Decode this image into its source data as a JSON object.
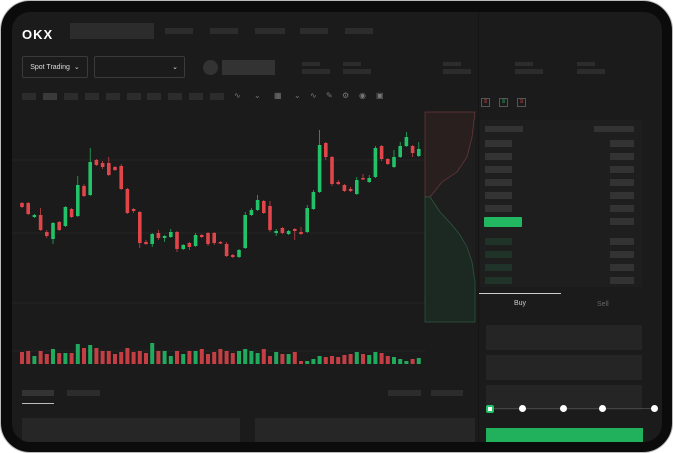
{
  "brand": {
    "logo_text": "OKX"
  },
  "market_selector": {
    "label": "Spot Trading",
    "chevron": "chevron-down-icon"
  },
  "pair_selector": {
    "value": "",
    "chevron": "chevron-down-icon"
  },
  "order_form": {
    "tabs": [
      {
        "label": "Buy",
        "active": true
      },
      {
        "label": "Sell",
        "active": false
      }
    ],
    "leverage_slider_position": 0,
    "submit_color": "#21b15d"
  },
  "orderbook": {
    "view_icons": [
      "orderbook-both-icon",
      "orderbook-bids-icon",
      "orderbook-asks-icon"
    ]
  },
  "colors": {
    "up": "#22c268",
    "down": "#e0454a",
    "background": "#1b1b1b"
  },
  "chart_data": {
    "type": "candlestick",
    "candles": [
      [
        167,
        163,
        168,
        162
      ],
      [
        167,
        156,
        168,
        155
      ],
      [
        153,
        155,
        156,
        152
      ],
      [
        155,
        140,
        162,
        139
      ],
      [
        138,
        134,
        140,
        132
      ],
      [
        131,
        147,
        148,
        126
      ],
      [
        148,
        140,
        149,
        139
      ],
      [
        144,
        163,
        164,
        143
      ],
      [
        161,
        153,
        162,
        152
      ],
      [
        154,
        185,
        194,
        153
      ],
      [
        184,
        174,
        186,
        173
      ],
      [
        175,
        208,
        222,
        174
      ],
      [
        210,
        205,
        211,
        204
      ],
      [
        207,
        203,
        209,
        201
      ],
      [
        207,
        195,
        213,
        194
      ],
      [
        203,
        200,
        204,
        199
      ],
      [
        204,
        181,
        206,
        180
      ],
      [
        181,
        157,
        182,
        156
      ],
      [
        161,
        159,
        162,
        157
      ],
      [
        158,
        127,
        159,
        122
      ],
      [
        128,
        126,
        130,
        125
      ],
      [
        126,
        136,
        137,
        123
      ],
      [
        137,
        132,
        140,
        130
      ],
      [
        132,
        134,
        135,
        128
      ],
      [
        133,
        138,
        141,
        132
      ],
      [
        138,
        121,
        139,
        118
      ],
      [
        121,
        125,
        126,
        120
      ],
      [
        127,
        123,
        128,
        120
      ],
      [
        124,
        135,
        137,
        123
      ],
      [
        135,
        133,
        136,
        132
      ],
      [
        137,
        126,
        138,
        124
      ],
      [
        137,
        127,
        138,
        125
      ],
      [
        128,
        127,
        129,
        126
      ],
      [
        126,
        114,
        128,
        113
      ],
      [
        115,
        113,
        116,
        112
      ],
      [
        113,
        120,
        121,
        112
      ],
      [
        122,
        155,
        158,
        121
      ],
      [
        155,
        160,
        162,
        154
      ],
      [
        160,
        170,
        175,
        159
      ],
      [
        169,
        157,
        170,
        156
      ],
      [
        164,
        140,
        169,
        138
      ],
      [
        137,
        139,
        141,
        134
      ],
      [
        142,
        137,
        143,
        136
      ],
      [
        136,
        139,
        140,
        135
      ],
      [
        141,
        139,
        142,
        130
      ],
      [
        138,
        136,
        143,
        135
      ],
      [
        138,
        162,
        165,
        137
      ],
      [
        161,
        178,
        180,
        160
      ],
      [
        178,
        225,
        240,
        177
      ],
      [
        227,
        213,
        228,
        210
      ],
      [
        213,
        186,
        214,
        184
      ],
      [
        188,
        186,
        190,
        185
      ],
      [
        185,
        179,
        186,
        178
      ],
      [
        181,
        179,
        183,
        178
      ],
      [
        176,
        190,
        193,
        175
      ],
      [
        192,
        191,
        196,
        190
      ],
      [
        188,
        192,
        195,
        187
      ],
      [
        193,
        222,
        224,
        192
      ],
      [
        224,
        211,
        225,
        209
      ],
      [
        211,
        206,
        212,
        205
      ],
      [
        203,
        213,
        220,
        202
      ],
      [
        213,
        224,
        228,
        212
      ],
      [
        224,
        233,
        238,
        223
      ],
      [
        224,
        217,
        225,
        213
      ],
      [
        214,
        221,
        228,
        213
      ]
    ],
    "candle_fields": [
      "open",
      "close",
      "high",
      "low"
    ],
    "volume": [
      12,
      13,
      8,
      13,
      10,
      15,
      11,
      11,
      11,
      20,
      16,
      19,
      16,
      13,
      13,
      10,
      12,
      16,
      12,
      13,
      11,
      21,
      13,
      13,
      8,
      13,
      10,
      13,
      13,
      15,
      10,
      12,
      15,
      13,
      11,
      13,
      15,
      13,
      11,
      15,
      8,
      12,
      10,
      10,
      12,
      3,
      3,
      5,
      8,
      7,
      8,
      7,
      9,
      10,
      12,
      10,
      9,
      12,
      11,
      8,
      7,
      5,
      3,
      5,
      6
    ],
    "grid": true
  }
}
